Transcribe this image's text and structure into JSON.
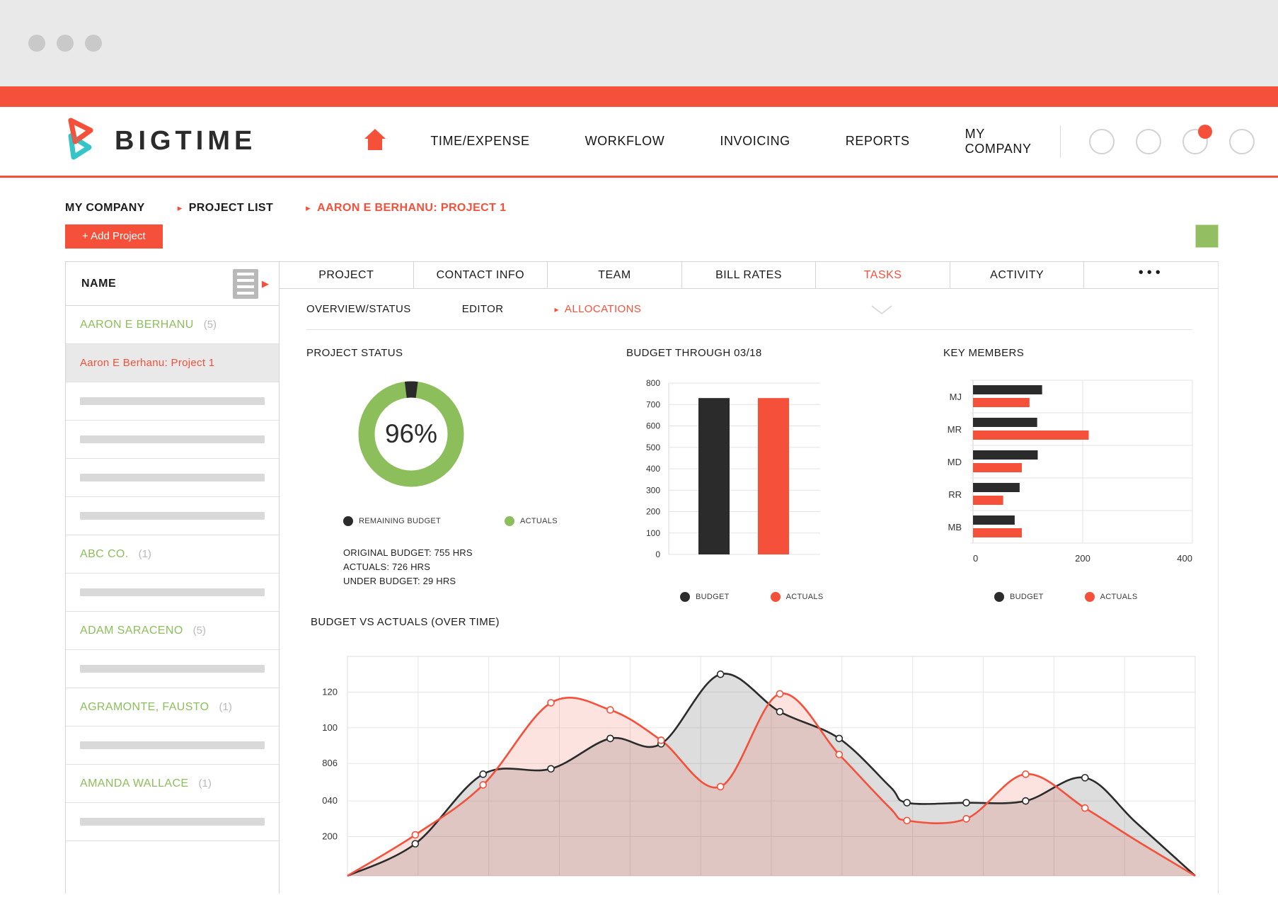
{
  "colors": {
    "red": "#f4503a",
    "green": "#8dbe5c",
    "dark": "#2b2b2b",
    "teal": "#35c4c8",
    "avatar_green": "#94be62",
    "grid": "#e3e3e3"
  },
  "nav": {
    "brand": "BIGTIME",
    "items": [
      {
        "label": "TIME/EXPENSE"
      },
      {
        "label": "WORKFLOW"
      },
      {
        "label": "INVOICING"
      },
      {
        "label": "REPORTS"
      },
      {
        "label": "MY COMPANY"
      }
    ]
  },
  "breadcrumb": {
    "items": [
      {
        "label": "MY COMPANY",
        "active": false
      },
      {
        "label": "PROJECT LIST",
        "active": false
      },
      {
        "label": "AARON E BERHANU: PROJECT 1",
        "active": true
      }
    ]
  },
  "toolbar": {
    "add_project_label": "+ Add Project"
  },
  "sidebar": {
    "header": "NAME",
    "rows": [
      {
        "type": "group",
        "label": "AARON E BERHANU",
        "count": "(5)"
      },
      {
        "type": "selected",
        "label": "Aaron E Berhanu: Project 1"
      },
      {
        "type": "placeholder"
      },
      {
        "type": "placeholder"
      },
      {
        "type": "placeholder"
      },
      {
        "type": "placeholder"
      },
      {
        "type": "group",
        "label": "ABC CO.",
        "count": "(1)"
      },
      {
        "type": "placeholder"
      },
      {
        "type": "group",
        "label": "ADAM SARACENO",
        "count": "(5)"
      },
      {
        "type": "placeholder"
      },
      {
        "type": "group",
        "label": "AGRAMONTE, FAUSTO",
        "count": "(1)"
      },
      {
        "type": "placeholder"
      },
      {
        "type": "group",
        "label": "AMANDA WALLACE",
        "count": "(1)"
      },
      {
        "type": "placeholder"
      }
    ]
  },
  "tabs": {
    "items": [
      {
        "label": "PROJECT",
        "active": false
      },
      {
        "label": "CONTACT INFO",
        "active": false
      },
      {
        "label": "TEAM",
        "active": false
      },
      {
        "label": "BILL RATES",
        "active": false
      },
      {
        "label": "TASKS",
        "active": true
      },
      {
        "label": "ACTIVITY",
        "active": false
      },
      {
        "label": "•••",
        "active": false,
        "more": true
      }
    ]
  },
  "subtabs": {
    "items": [
      {
        "label": "OVERVIEW/STATUS",
        "active": false
      },
      {
        "label": "EDITOR",
        "active": false
      },
      {
        "label": "ALLOCATIONS",
        "active": true
      }
    ]
  },
  "chart_data": [
    {
      "type": "pie",
      "title": "PROJECT STATUS",
      "center_label": "96%",
      "slices": [
        {
          "label": "ACTUALS",
          "value": 96,
          "color": "#8dbe5c"
        },
        {
          "label": "REMAINING BUDGET",
          "value": 4,
          "color": "#2b2b2b"
        }
      ],
      "legend": [
        {
          "label": "REMAINING BUDGET",
          "color": "#2b2b2b"
        },
        {
          "label": "ACTUALS",
          "color": "#8dbe5c"
        }
      ],
      "stats": [
        "ORIGINAL BUDGET: 755 HRS",
        "ACTUALS: 726 HRS",
        "UNDER BUDGET: 29 HRS"
      ]
    },
    {
      "type": "bar",
      "title": "BUDGET THROUGH 03/18",
      "categories": [
        "BUDGET",
        "ACTUALS"
      ],
      "values": [
        730,
        730
      ],
      "bar_colors": [
        "#2b2b2b",
        "#f4503a"
      ],
      "ylim": [
        0,
        800
      ],
      "yticks": [
        "800",
        "700",
        "600",
        "500",
        "400",
        "300",
        "200",
        "100",
        "0"
      ],
      "legend": [
        {
          "label": "BUDGET",
          "color": "#2b2b2b"
        },
        {
          "label": "ACTUALS",
          "color": "#f4503a"
        }
      ]
    },
    {
      "type": "bar",
      "orientation": "horizontal",
      "title": "KEY MEMBERS",
      "categories": [
        "MJ",
        "MR",
        "MD",
        "RR",
        "MB"
      ],
      "series": [
        {
          "name": "BUDGET",
          "color": "#2b2b2b",
          "values": [
            126,
            117,
            118,
            85,
            76
          ]
        },
        {
          "name": "ACTUALS",
          "color": "#f4503a",
          "values": [
            103,
            211,
            89,
            55,
            89
          ]
        }
      ],
      "xlim": [
        0,
        400
      ],
      "xticks": [
        "0",
        "200",
        "400"
      ],
      "legend": [
        {
          "label": "BUDGET",
          "color": "#2b2b2b"
        },
        {
          "label": "ACTUALS",
          "color": "#f4503a"
        }
      ]
    },
    {
      "type": "area",
      "title": "BUDGET VS ACTUALS (OVER TIME)",
      "yticks": [
        "120",
        "100",
        "806",
        "040",
        "200"
      ],
      "ytick_values": [
        103,
        83,
        63,
        42,
        22
      ],
      "ylim": [
        0,
        123
      ],
      "x_gridline_count": 12,
      "grid": true,
      "legend_position": "none",
      "series": [
        {
          "name": "BUDGET",
          "color": "#2b2b2b",
          "fill": "rgba(43,43,43,0.16)",
          "points": [
            [
              0,
              0,
              0
            ],
            [
              0.08,
              18,
              1
            ],
            [
              0.16,
              57,
              1
            ],
            [
              0.24,
              60,
              1
            ],
            [
              0.31,
              77,
              1
            ],
            [
              0.37,
              74,
              1
            ],
            [
              0.44,
              113,
              1
            ],
            [
              0.51,
              92,
              1
            ],
            [
              0.58,
              77,
              1
            ],
            [
              0.64,
              50,
              0
            ],
            [
              0.66,
              41,
              1
            ],
            [
              0.73,
              41,
              1
            ],
            [
              0.8,
              42,
              1
            ],
            [
              0.87,
              55,
              1
            ],
            [
              0.93,
              30,
              0
            ],
            [
              1,
              0,
              0
            ]
          ]
        },
        {
          "name": "ACTUALS",
          "color": "#f4503a",
          "fill": "rgba(244,80,58,0.16)",
          "points": [
            [
              0,
              0,
              0
            ],
            [
              0.08,
              23,
              1
            ],
            [
              0.16,
              51,
              1
            ],
            [
              0.24,
              97,
              1
            ],
            [
              0.31,
              93,
              1
            ],
            [
              0.37,
              76,
              1
            ],
            [
              0.44,
              50,
              1
            ],
            [
              0.51,
              102,
              1
            ],
            [
              0.58,
              68,
              1
            ],
            [
              0.64,
              38,
              0
            ],
            [
              0.66,
              31,
              1
            ],
            [
              0.73,
              32,
              1
            ],
            [
              0.8,
              57,
              1
            ],
            [
              0.87,
              38,
              1
            ],
            [
              0.93,
              20,
              0
            ],
            [
              1,
              0,
              0
            ]
          ]
        }
      ]
    }
  ]
}
